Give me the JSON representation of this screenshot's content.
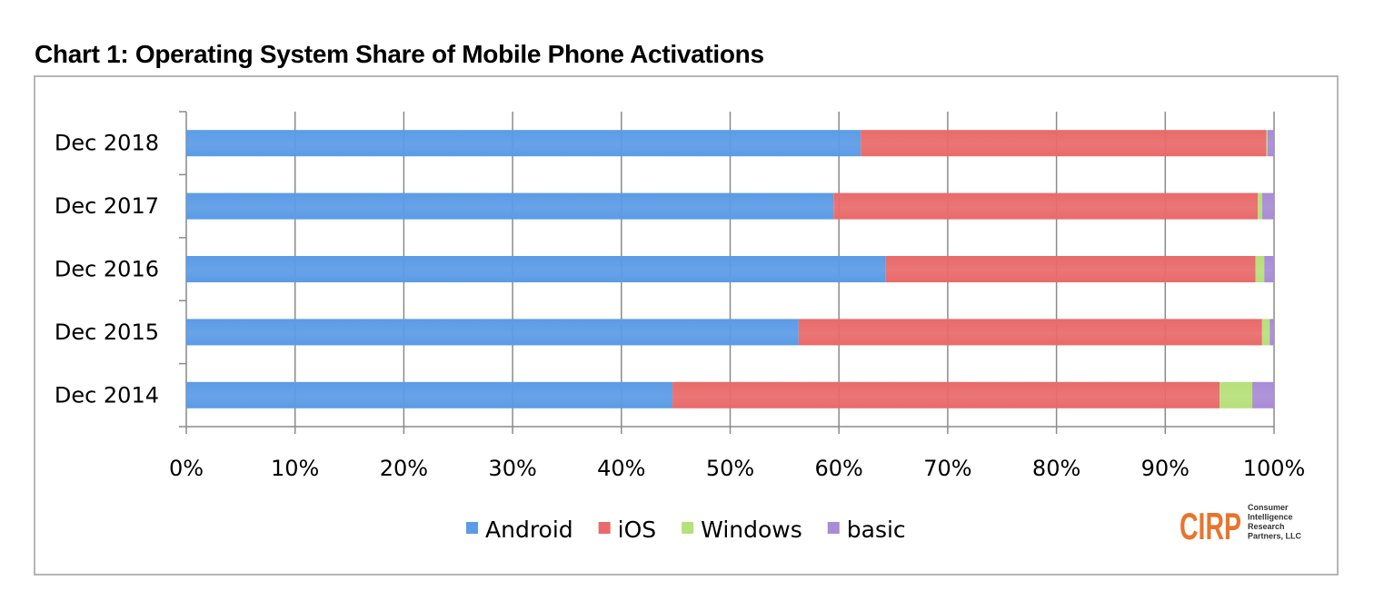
{
  "chart_data": {
    "type": "bar",
    "orientation": "horizontal",
    "stacked": true,
    "title": "Chart 1: Operating System Share of Mobile Phone Activations",
    "categories": [
      "Dec 2018",
      "Dec 2017",
      "Dec 2016",
      "Dec 2015",
      "Dec 2014"
    ],
    "series": [
      {
        "name": "Android",
        "color": "#5b9be6",
        "values": [
          62,
          59.5,
          64.3,
          56.3,
          44.7
        ]
      },
      {
        "name": "iOS",
        "color": "#e96a6a",
        "values": [
          37.3,
          39,
          34,
          42.6,
          50.3
        ]
      },
      {
        "name": "Windows",
        "color": "#b6e07a",
        "values": [
          0.1,
          0.4,
          0.8,
          0.7,
          3
        ]
      },
      {
        "name": "basic",
        "color": "#a98bd6",
        "values": [
          0.6,
          1.1,
          0.9,
          0.4,
          2
        ]
      }
    ],
    "xlim": [
      0,
      100
    ],
    "x_ticks": [
      "0%",
      "10%",
      "20%",
      "30%",
      "40%",
      "50%",
      "60%",
      "70%",
      "80%",
      "90%",
      "100%"
    ],
    "grid": true,
    "legend_position": "bottom"
  },
  "logo": {
    "text": "CIRP",
    "lines": [
      "Consumer",
      "Intelligence",
      "Research",
      "Partners, LLC"
    ],
    "color": "#e8742d"
  }
}
